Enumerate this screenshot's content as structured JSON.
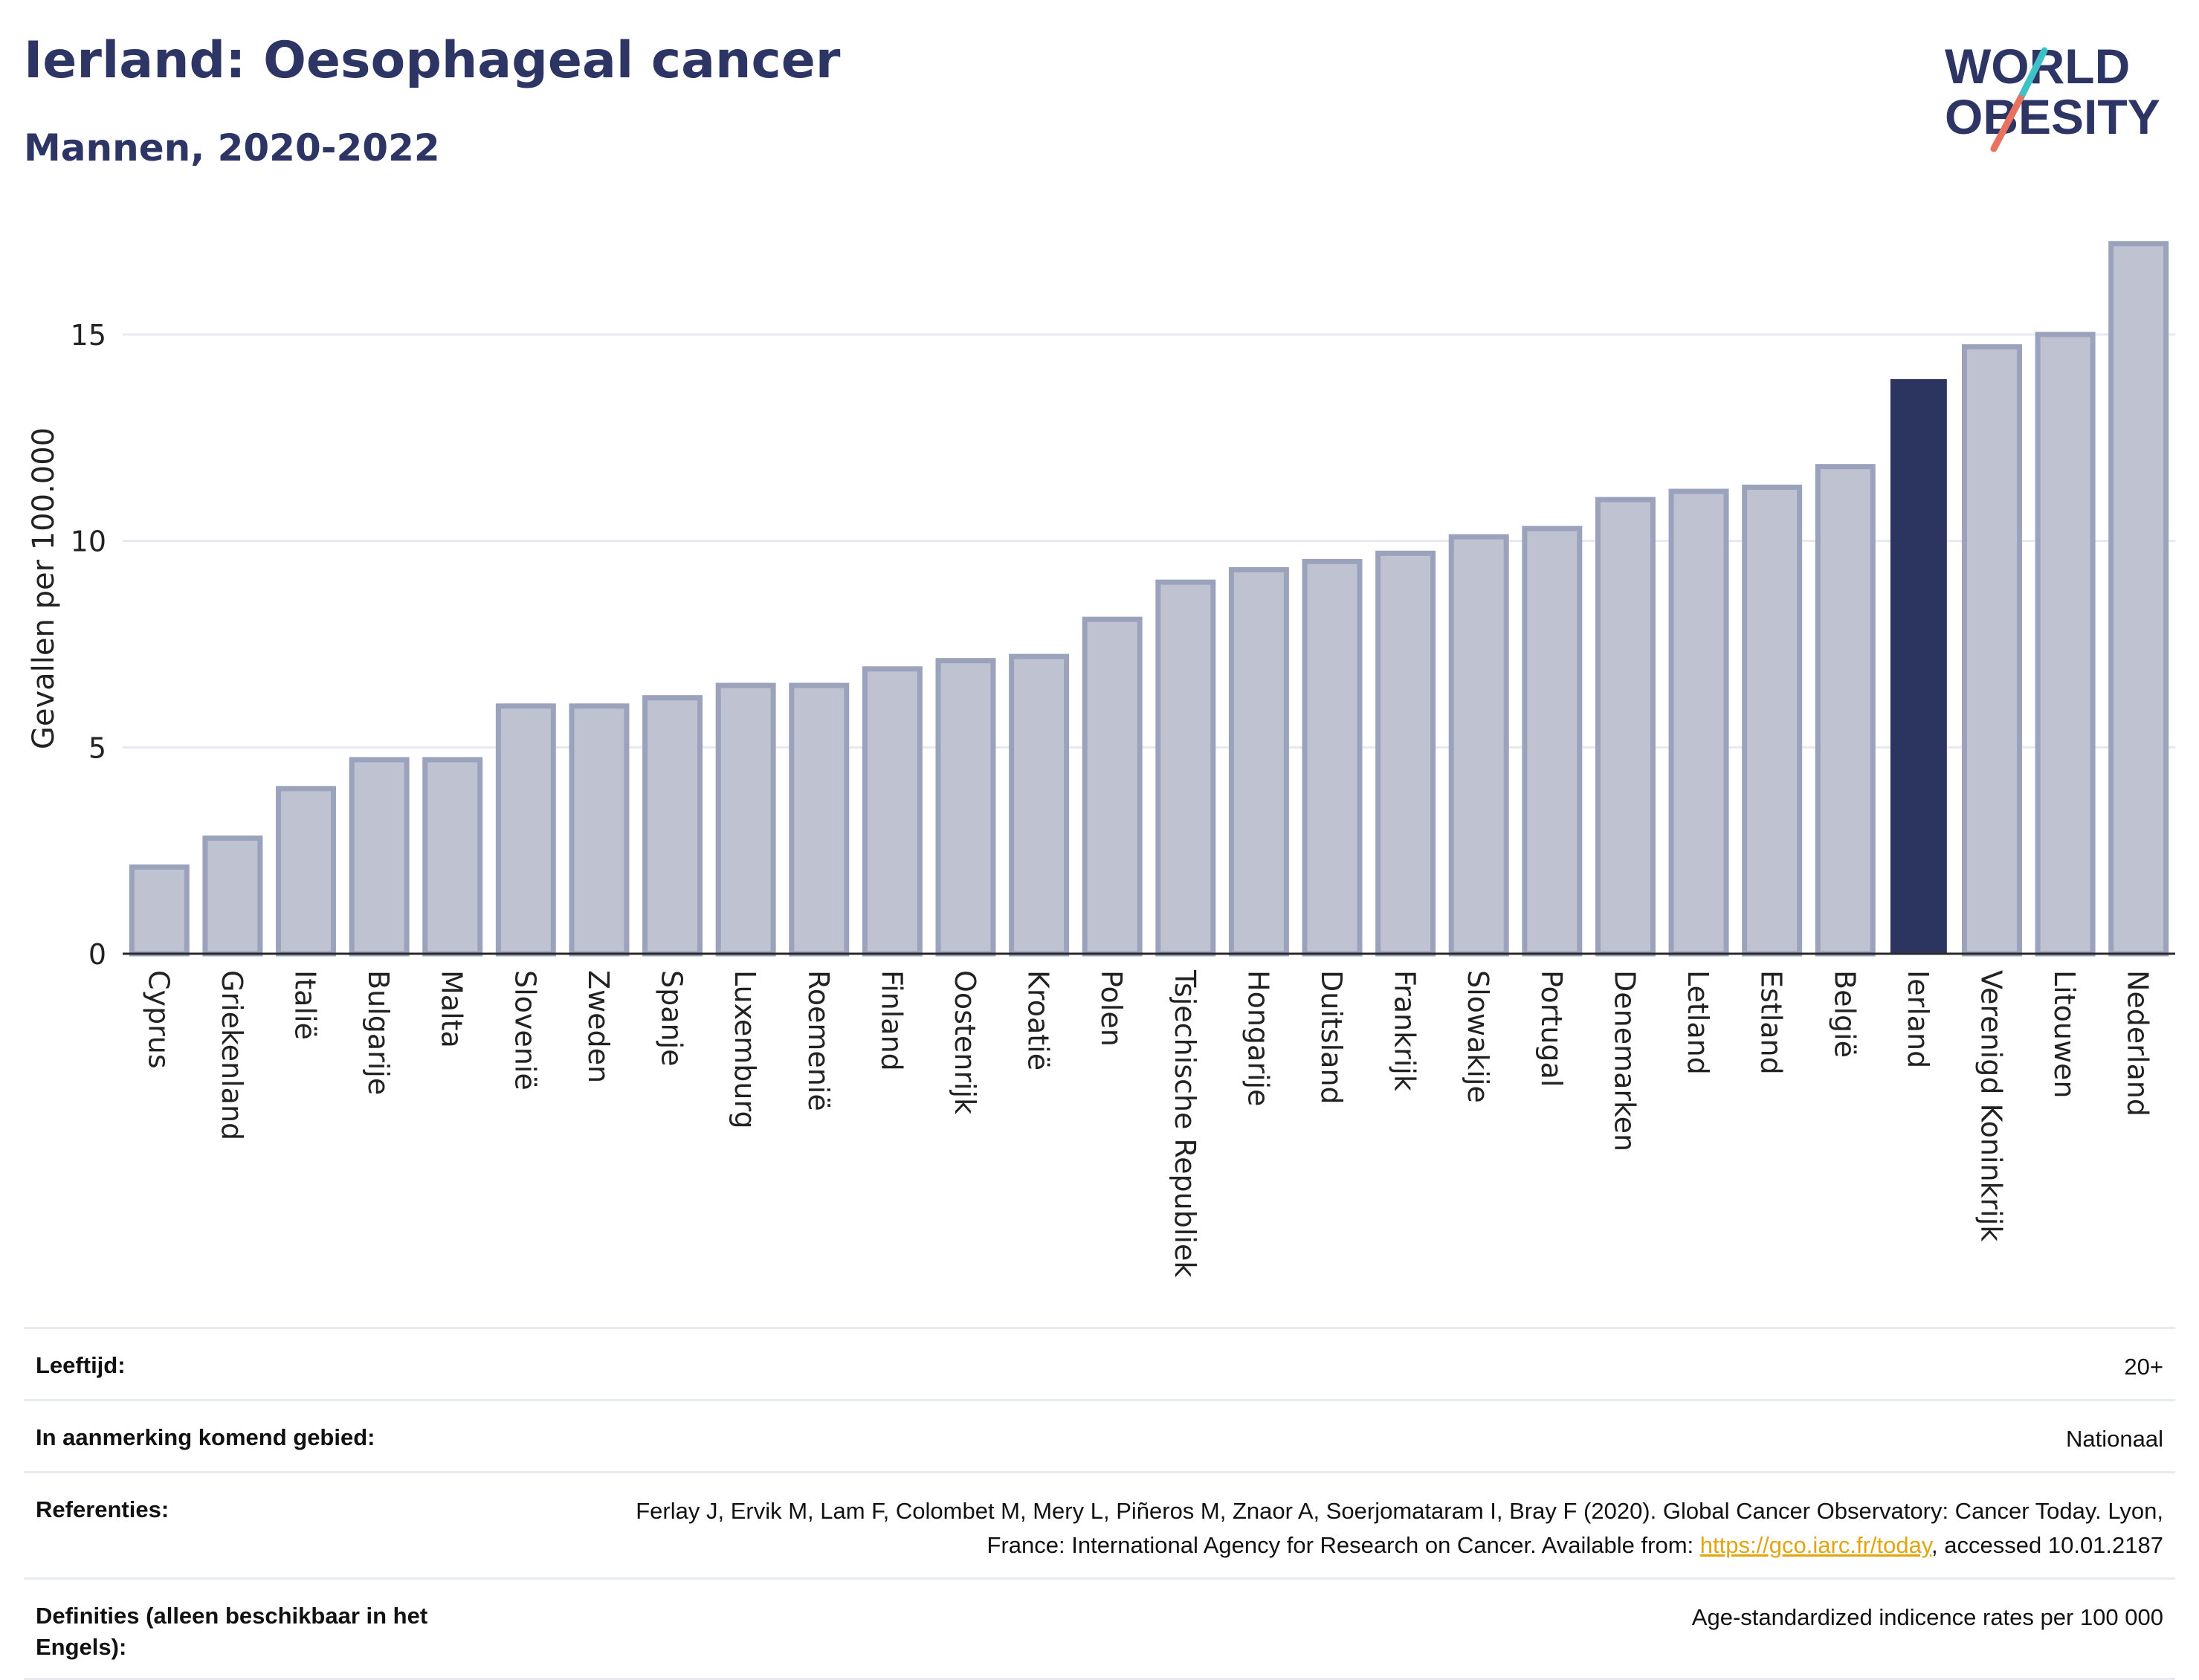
{
  "header": {
    "title": "Ierland: Oesophageal cancer",
    "subtitle": "Mannen, 2020-2022"
  },
  "logo": {
    "line1": "WORLD",
    "line2": "OBESITY",
    "accent_teal": "#3ec2c8",
    "accent_coral": "#e8725f",
    "text_color": "#2c3564"
  },
  "colors": {
    "bar": "#bfc3d1",
    "bar_border": "#9ba2bb",
    "highlight": "#2c3560",
    "grid": "#e6eaf0",
    "axis": "#2a2a2a"
  },
  "chart_data": {
    "type": "bar",
    "ylabel": "Gevallen per 100.000",
    "xlabel": "",
    "ylim": [
      0,
      17.7
    ],
    "yticks": [
      0,
      5,
      10,
      15
    ],
    "grid": true,
    "highlight": "Ierland",
    "categories": [
      "Cyprus",
      "Griekenland",
      "Italië",
      "Bulgarije",
      "Malta",
      "Slovenië",
      "Zweden",
      "Spanje",
      "Luxemburg",
      "Roemenië",
      "Finland",
      "Oostenrijk",
      "Kroatië",
      "Polen",
      "Tsjechische Republiek",
      "Hongarije",
      "Duitsland",
      "Frankrijk",
      "Slowakije",
      "Portugal",
      "Denemarken",
      "Letland",
      "Estland",
      "België",
      "Ierland",
      "Verenigd Koninkrijk",
      "Litouwen",
      "Nederland"
    ],
    "values": [
      2.1,
      2.8,
      4.0,
      4.7,
      4.7,
      6.0,
      6.0,
      6.2,
      6.5,
      6.5,
      6.9,
      7.1,
      7.2,
      8.1,
      9.0,
      9.3,
      9.5,
      9.7,
      10.1,
      10.3,
      11.0,
      11.2,
      11.3,
      11.8,
      13.9,
      14.7,
      15.0,
      17.2
    ]
  },
  "meta": {
    "age_label": "Leeftijd:",
    "age_value": "20+",
    "area_label": "In aanmerking komend gebied:",
    "area_value": "Nationaal",
    "ref_label": "Referenties:",
    "ref_text_1": "Ferlay J, Ervik M, Lam F, Colombet M, Mery L, Piñeros M, Znaor A, Soerjomataram I, Bray F (2020). Global Cancer Observatory: Cancer Today. Lyon, France: International Agency for Research on Cancer. Available from: ",
    "ref_link": "https://gco.iarc.fr/today",
    "ref_text_2": ", accessed 10.01.2187",
    "def_label": "Definities (alleen beschikbaar in het Engels):",
    "def_value": "Age-standardized indicence rates per 100 000"
  }
}
